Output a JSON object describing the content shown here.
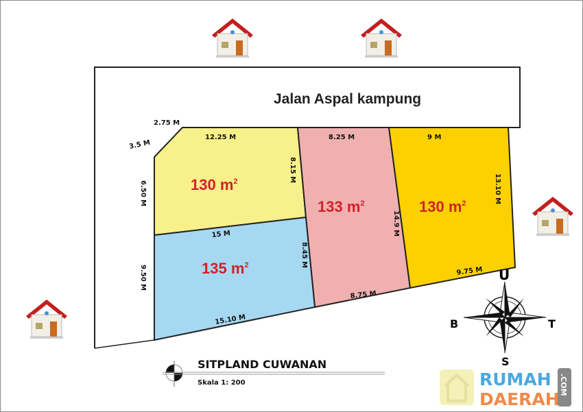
{
  "road_label": "Jalan Aspal kampung",
  "plots": [
    {
      "area": "130 m",
      "sup": "2",
      "color": "#f8f08a"
    },
    {
      "area": "133 m",
      "sup": "2",
      "color": "#f0b0b0"
    },
    {
      "area": "130 m",
      "sup": "2",
      "color": "#fdd100"
    },
    {
      "area": "135 m",
      "sup": "2",
      "color": "#a6d8f2"
    }
  ],
  "dims": {
    "d1": "2.75 M",
    "d2": "3.5 M",
    "d3": "12.25 M",
    "d4": "8.15 M",
    "d5": "6.50 M",
    "d6": "8.25 M",
    "d7": "9 M",
    "d8": "13.10 M",
    "d9": "14.9 M",
    "d10": "15 M",
    "d11": "8.45 M",
    "d12": "9.50 M",
    "d13": "9.75 M",
    "d14": "8.75 M",
    "d15": "15.10 M"
  },
  "compass": {
    "n": "U",
    "s": "S",
    "w": "B",
    "e": "T"
  },
  "title": "SITPLAND CUWANAN",
  "scale": "Skala 1: 200",
  "watermark": {
    "line1": "RUMAH",
    "line2": "DAERAH",
    "suffix": ".COM"
  }
}
